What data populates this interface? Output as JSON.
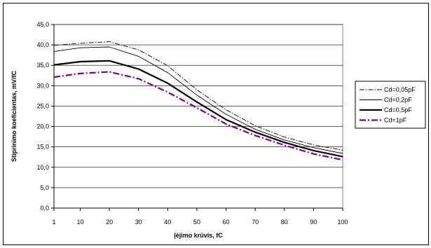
{
  "chart_data": {
    "type": "line",
    "xlabel": "Įėjimo krūvis, fC",
    "ylabel": "Stiprinimo koeficientas, mV/fC",
    "x": [
      1,
      10,
      20,
      30,
      40,
      50,
      60,
      70,
      80,
      90,
      100
    ],
    "x_tick_labels": [
      "1",
      "10",
      "20",
      "30",
      "40",
      "50",
      "60",
      "70",
      "80",
      "90",
      "100"
    ],
    "ylim": [
      0,
      45
    ],
    "y_tick_labels": [
      "0,0",
      "5,0",
      "10,0",
      "15,0",
      "20,0",
      "25,0",
      "30,0",
      "35,0",
      "40,0",
      "45,0"
    ],
    "grid": "horizontal",
    "legend_position": "right",
    "series": [
      {
        "name": "Cd=0,05pF",
        "color": "#000000",
        "style": "dash-dot-thin",
        "values": [
          39.9,
          40.4,
          40.8,
          38.8,
          34.9,
          29.0,
          24.1,
          20.2,
          17.4,
          15.5,
          14.2
        ]
      },
      {
        "name": "Cd=0,2pF",
        "color": "#000000",
        "style": "solid-thin",
        "values": [
          38.4,
          39.3,
          39.5,
          37.2,
          33.2,
          27.7,
          23.0,
          19.3,
          16.7,
          14.8,
          13.4
        ]
      },
      {
        "name": "Cd=0,5pF",
        "color": "#000000",
        "style": "solid-thick",
        "values": [
          35.1,
          35.9,
          36.1,
          34.1,
          30.6,
          26.0,
          21.7,
          18.6,
          16.1,
          14.1,
          12.6
        ]
      },
      {
        "name": "Cd=1pF",
        "color": "#800080",
        "style": "dash-dot-thick",
        "values": [
          32.1,
          33.0,
          33.4,
          31.7,
          28.4,
          24.6,
          20.6,
          17.8,
          15.4,
          13.3,
          11.8
        ]
      }
    ]
  }
}
